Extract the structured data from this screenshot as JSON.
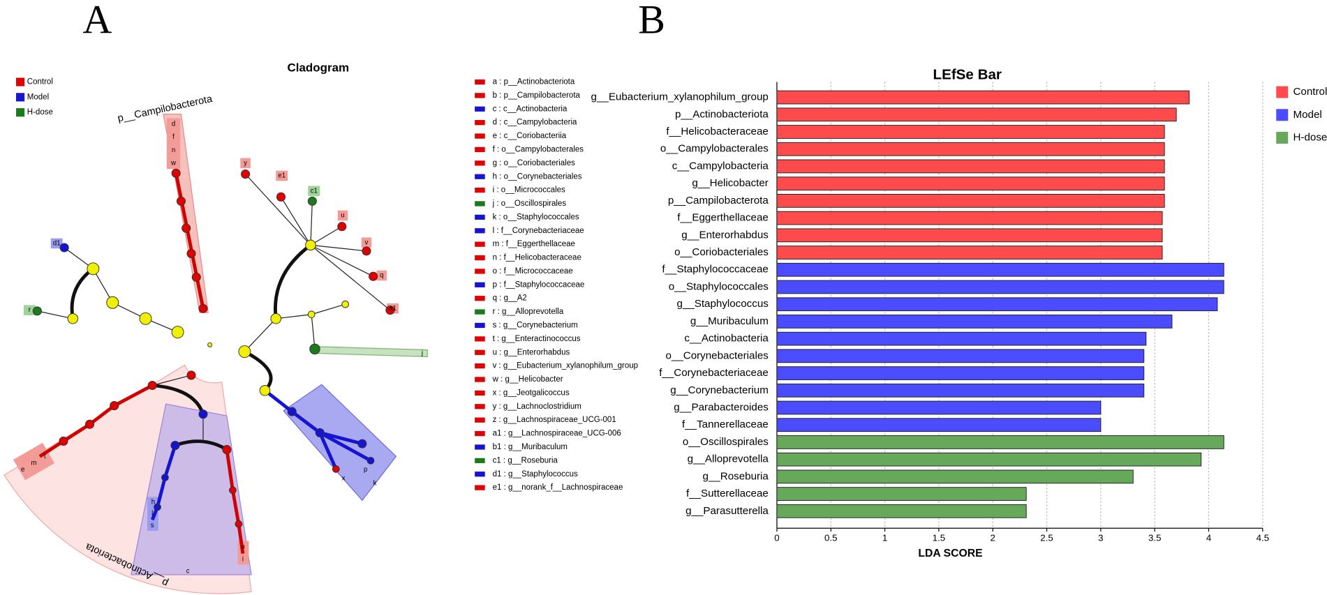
{
  "panel_labels": [
    "A",
    "B"
  ],
  "cladogram": {
    "title": "Cladogram",
    "legend": [
      {
        "name": "Control",
        "color": "#e00000"
      },
      {
        "name": "Model",
        "color": "#1414d2"
      },
      {
        "name": "H-dose",
        "color": "#1c7a1c"
      }
    ],
    "clade_labels": [
      "p__Campilobacterota",
      "p__Actinobacteriota"
    ],
    "node_labels": [
      "d",
      "f",
      "n",
      "w",
      "y",
      "e1",
      "c1",
      "u",
      "v",
      "q",
      "a1",
      "d1",
      "r",
      "j",
      "p",
      "k",
      "x",
      "e",
      "m",
      "t",
      "s",
      "l",
      "h",
      "i",
      "o",
      "c"
    ],
    "key": [
      {
        "label": "a : p__Actinobacteriota",
        "color": "#e00000"
      },
      {
        "label": "b : p__Campilobacterota",
        "color": "#e00000"
      },
      {
        "label": "c : c__Actinobacteria",
        "color": "#1414d2"
      },
      {
        "label": "d : c__Campylobacteria",
        "color": "#e00000"
      },
      {
        "label": "e : c__Coriobacteriia",
        "color": "#e00000"
      },
      {
        "label": "f : o__Campylobacterales",
        "color": "#e00000"
      },
      {
        "label": "g : o__Coriobacteriales",
        "color": "#e00000"
      },
      {
        "label": "h : o__Corynebacteriales",
        "color": "#1414d2"
      },
      {
        "label": "i : o__Micrococcales",
        "color": "#e00000"
      },
      {
        "label": "j : o__Oscillospirales",
        "color": "#1c7a1c"
      },
      {
        "label": "k : o__Staphylococcales",
        "color": "#1414d2"
      },
      {
        "label": "l : f__Corynebacteriaceae",
        "color": "#1414d2"
      },
      {
        "label": "m : f__Eggerthellaceae",
        "color": "#e00000"
      },
      {
        "label": "n : f__Helicobacteraceae",
        "color": "#e00000"
      },
      {
        "label": "o : f__Micrococcaceae",
        "color": "#e00000"
      },
      {
        "label": "p : f__Staphylococcaceae",
        "color": "#1414d2"
      },
      {
        "label": "q : g__A2",
        "color": "#e00000"
      },
      {
        "label": "r : g__Alloprevotella",
        "color": "#1c7a1c"
      },
      {
        "label": "s : g__Corynebacterium",
        "color": "#1414d2"
      },
      {
        "label": "t : g__Enteractinococcus",
        "color": "#e00000"
      },
      {
        "label": "u : g__Enterorhabdus",
        "color": "#e00000"
      },
      {
        "label": "v : g__Eubacterium_xylanophilum_group",
        "color": "#e00000"
      },
      {
        "label": "w : g__Helicobacter",
        "color": "#e00000"
      },
      {
        "label": "x : g__Jeotgalicoccus",
        "color": "#e00000"
      },
      {
        "label": "y : g__Lachnoclostridium",
        "color": "#e00000"
      },
      {
        "label": "z : g__Lachnospiraceae_UCG-001",
        "color": "#e00000"
      },
      {
        "label": "a1 : g__Lachnospiraceae_UCG-006",
        "color": "#e00000"
      },
      {
        "label": "b1 : g__Muribaculum",
        "color": "#1414d2"
      },
      {
        "label": "c1 : g__Roseburia",
        "color": "#1c7a1c"
      },
      {
        "label": "d1 : g__Staphylococcus",
        "color": "#1414d2"
      },
      {
        "label": "e1 : g__norank_f__Lachnospiraceae",
        "color": "#e00000"
      }
    ]
  },
  "chart_data": {
    "type": "bar",
    "orientation": "horizontal",
    "title": "LEfSe Bar",
    "xlabel": "LDA SCORE",
    "categories": [
      "g__Eubacterium_xylanophilum_group",
      "p__Actinobacteriota",
      "f__Helicobacteraceae",
      "o__Campylobacterales",
      "c__Campylobacteria",
      "g__Helicobacter",
      "p__Campilobacterota",
      "f__Eggerthellaceae",
      "g__Enterorhabdus",
      "o__Coriobacteriales",
      "f__Staphylococcaceae",
      "o__Staphylococcales",
      "g__Staphylococcus",
      "g__Muribaculum",
      "c__Actinobacteria",
      "o__Corynebacteriales",
      "f__Corynebacteriaceae",
      "g__Corynebacterium",
      "g__Parabacteroides",
      "f__Tannerellaceae",
      "o__Oscillospirales",
      "g__Alloprevotella",
      "g__Roseburia",
      "f__Sutterellaceae",
      "g__Parasutterella"
    ],
    "series": [
      {
        "name": "Control",
        "color": "#ff4b4b",
        "values": [
          3.82,
          3.7,
          3.59,
          3.59,
          3.59,
          3.59,
          3.59,
          3.57,
          3.57,
          3.57,
          null,
          null,
          null,
          null,
          null,
          null,
          null,
          null,
          null,
          null,
          null,
          null,
          null,
          null,
          null
        ]
      },
      {
        "name": "Model",
        "color": "#4b4bff",
        "values": [
          null,
          null,
          null,
          null,
          null,
          null,
          null,
          null,
          null,
          null,
          4.14,
          4.14,
          4.08,
          3.66,
          3.42,
          3.4,
          3.4,
          3.4,
          3.0,
          3.0,
          null,
          null,
          null,
          null,
          null
        ]
      },
      {
        "name": "H-dose",
        "color": "#66a95a",
        "values": [
          null,
          null,
          null,
          null,
          null,
          null,
          null,
          null,
          null,
          null,
          null,
          null,
          null,
          null,
          null,
          null,
          null,
          null,
          null,
          null,
          4.14,
          3.93,
          3.3,
          2.31,
          2.31
        ]
      }
    ],
    "xlim": [
      0,
      4.5
    ],
    "xticks": [
      0,
      0.5,
      1,
      1.5,
      2,
      2.5,
      3,
      3.5,
      4,
      4.5
    ],
    "grid": true,
    "legend": "upper right"
  }
}
